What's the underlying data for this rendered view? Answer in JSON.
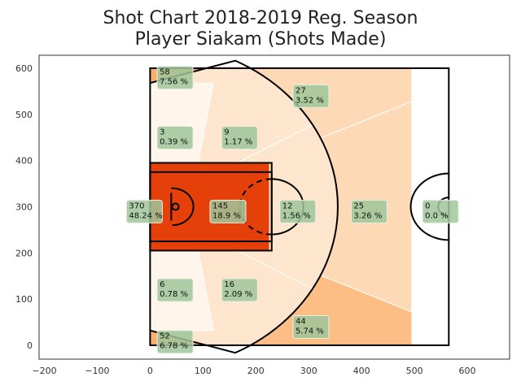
{
  "chart_data": {
    "type": "heatmap",
    "title_line1": "Shot Chart 2018-2019 Reg. Season",
    "title_line2": "Player Siakam (Shots Made)",
    "xlim": [
      -210,
      680
    ],
    "ylim": [
      -30,
      628
    ],
    "xticks": [
      -200,
      -100,
      0,
      100,
      200,
      300,
      400,
      500,
      600
    ],
    "yticks": [
      0,
      100,
      200,
      300,
      400,
      500,
      600
    ],
    "grid": false,
    "zones": [
      {
        "id": "left-corner-3-top",
        "count": "58",
        "pct": "7.56 %",
        "color": "#fdae6b",
        "label_x": 18,
        "label_y": 590
      },
      {
        "id": "upper-wing-3",
        "count": "27",
        "pct": "3.52 %",
        "color": "#fdd9b5",
        "label_x": 275,
        "label_y": 550
      },
      {
        "id": "upper-baseline-mid",
        "count": "3",
        "pct": "0.39 %",
        "color": "#fff5eb",
        "label_x": 18,
        "label_y": 460
      },
      {
        "id": "upper-elbow-mid",
        "count": "9",
        "pct": "1.17 %",
        "color": "#fee6ce",
        "label_x": 140,
        "label_y": 460
      },
      {
        "id": "restricted-area",
        "count": "370",
        "pct": "48.24 %",
        "color": "#e6400a",
        "label_x": -40,
        "label_y": 300
      },
      {
        "id": "paint",
        "count": "145",
        "pct": "18.9 %",
        "color": "#e6400a",
        "label_x": 118,
        "label_y": 300
      },
      {
        "id": "top-key-mid",
        "count": "12",
        "pct": "1.56 %",
        "color": "#fee6ce",
        "label_x": 250,
        "label_y": 300
      },
      {
        "id": "top-key-3",
        "count": "25",
        "pct": "3.26 %",
        "color": "#fdd9b5",
        "label_x": 385,
        "label_y": 300
      },
      {
        "id": "backcourt",
        "count": "0",
        "pct": "0.0 %",
        "color": "#ffffff",
        "label_x": 520,
        "label_y": 300
      },
      {
        "id": "lower-baseline-mid",
        "count": "6",
        "pct": "0.78 %",
        "color": "#fff5eb",
        "label_x": 18,
        "label_y": 130
      },
      {
        "id": "lower-elbow-mid",
        "count": "16",
        "pct": "2.09 %",
        "color": "#fee6ce",
        "label_x": 140,
        "label_y": 130
      },
      {
        "id": "lower-wing-3",
        "count": "44",
        "pct": "5.74 %",
        "color": "#fdbe85",
        "label_x": 275,
        "label_y": 50
      },
      {
        "id": "right-corner-3-bottom",
        "count": "52",
        "pct": "6.78 %",
        "color": "#fdae6b",
        "label_x": 18,
        "label_y": 18
      }
    ],
    "label_box_color": "#9fc59a"
  }
}
